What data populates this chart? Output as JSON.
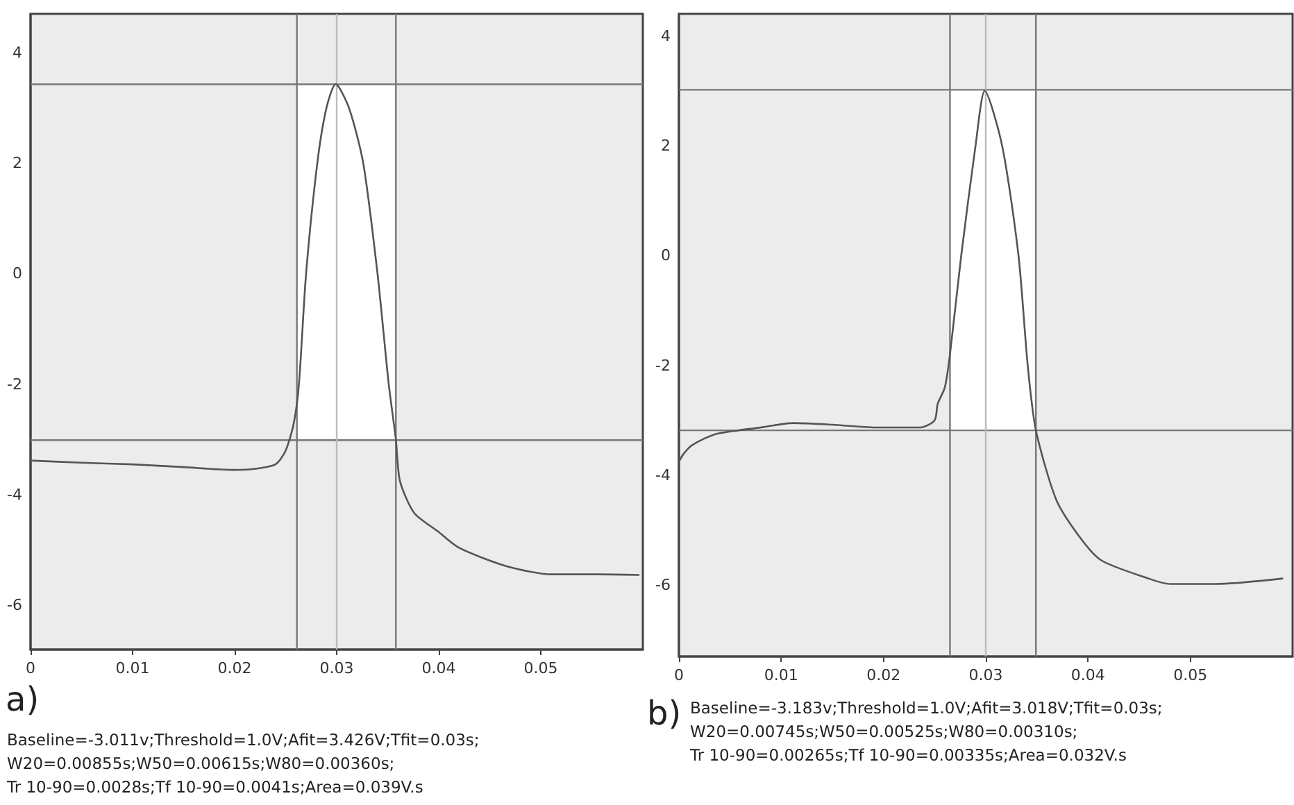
{
  "chart_data": [
    {
      "type": "line",
      "title": "a)",
      "annotations": [
        "Baseline=-3.011v;Threshold=1.0V;Afit=3.426V;Tfit=0.03s;",
        "W20=0.00855s;W50=0.00615s;W80=0.00360s;",
        "Tr 10-90=0.0028s;Tf 10-90=0.0041s;Area=0.039V.s"
      ],
      "series": [
        {
          "color": "#555555",
          "x": [
            0,
            0.005,
            0.01,
            0.015,
            0.02,
            0.022,
            0.024,
            0.025,
            0.0258,
            0.0263,
            0.027,
            0.0281,
            0.029,
            0.0299,
            0.0312,
            0.0326,
            0.034,
            0.0351,
            0.0358,
            0.0362,
            0.0376,
            0.0399,
            0.042,
            0.0466,
            0.0511,
            0.0556,
            0.0596
          ],
          "values": [
            -3.38,
            -3.42,
            -3.45,
            -3.5,
            -3.55,
            -3.53,
            -3.45,
            -3.2,
            -2.7,
            -2,
            0,
            2,
            3,
            3.43,
            3,
            2,
            0,
            -2,
            -3,
            -3.75,
            -4.33,
            -4.66,
            -4.96,
            -5.29,
            -5.44,
            -5.44,
            -5.45
          ]
        }
      ],
      "xlim": [
        0,
        0.06
      ],
      "xticks": [
        {
          "value": 0,
          "label": "0"
        },
        0.01,
        0.02,
        0.03,
        0.04,
        0.05
      ],
      "ylim": [
        -6.8,
        4.7
      ],
      "yticks": [
        -6,
        -4,
        -2,
        0,
        2,
        4
      ],
      "grid": false,
      "marker": "none",
      "line_style": "solid",
      "ref_lines": [
        {
          "axis": "y",
          "value": 3.426,
          "color": "#777777"
        },
        {
          "axis": "y",
          "value": -3.011,
          "color": "#777777"
        },
        {
          "axis": "x",
          "value": 0.0261,
          "color": "#777777"
        },
        {
          "axis": "x",
          "value": 0.0358,
          "color": "#777777"
        },
        {
          "axis": "x",
          "value": 0.03,
          "color": "#bbbbbb"
        }
      ],
      "bands": [
        {
          "axis": "x",
          "from": 0.0261,
          "to": 0.0358,
          "color": "#ffffff"
        }
      ]
    },
    {
      "type": "line",
      "title": "b)",
      "annotations": [
        "Baseline=-3.183v;Threshold=1.0V;Afit=3.018V;Tfit=0.03s;",
        "W20=0.00745s;W50=0.00525s;W80=0.00310s;",
        "Tr 10-90=0.00265s;Tf 10-90=0.00335s;Area=0.032V.s"
      ],
      "series": [
        {
          "color": "#555555",
          "x": [
            0,
            0.0005,
            0.0013,
            0.0036,
            0.008,
            0.0112,
            0.015,
            0.0192,
            0.0236,
            0.025,
            0.0253,
            0.026,
            0.0265,
            0.0276,
            0.029,
            0.0299,
            0.0316,
            0.0332,
            0.0341,
            0.0349,
            0.0369,
            0.0392,
            0.0413,
            0.0459,
            0.048,
            0.0525,
            0.059
          ],
          "values": [
            -3.75,
            -3.6,
            -3.45,
            -3.25,
            -3.13,
            -3.05,
            -3.08,
            -3.13,
            -3.13,
            -3,
            -2.7,
            -2.4,
            -1.8,
            0,
            2,
            3,
            2,
            0,
            -2,
            -3.18,
            -4.45,
            -5.13,
            -5.55,
            -5.88,
            -5.98,
            -5.98,
            -5.88
          ]
        }
      ],
      "xlim": [
        0,
        0.06
      ],
      "xticks": [
        {
          "value": 0,
          "label": "0"
        },
        0.01,
        0.02,
        0.03,
        0.04,
        0.05
      ],
      "ylim": [
        -7.3,
        4.4
      ],
      "yticks": [
        -6,
        -4,
        -2,
        0,
        2,
        4
      ],
      "grid": false,
      "marker": "none",
      "line_style": "solid",
      "ref_lines": [
        {
          "axis": "y",
          "value": 3.018,
          "color": "#777777"
        },
        {
          "axis": "y",
          "value": -3.183,
          "color": "#777777"
        },
        {
          "axis": "x",
          "value": 0.0265,
          "color": "#777777"
        },
        {
          "axis": "x",
          "value": 0.0349,
          "color": "#777777"
        },
        {
          "axis": "x",
          "value": 0.03,
          "color": "#bbbbbb"
        }
      ],
      "bands": [
        {
          "axis": "x",
          "from": 0.0265,
          "to": 0.0349,
          "color": "#ffffff"
        }
      ]
    }
  ]
}
